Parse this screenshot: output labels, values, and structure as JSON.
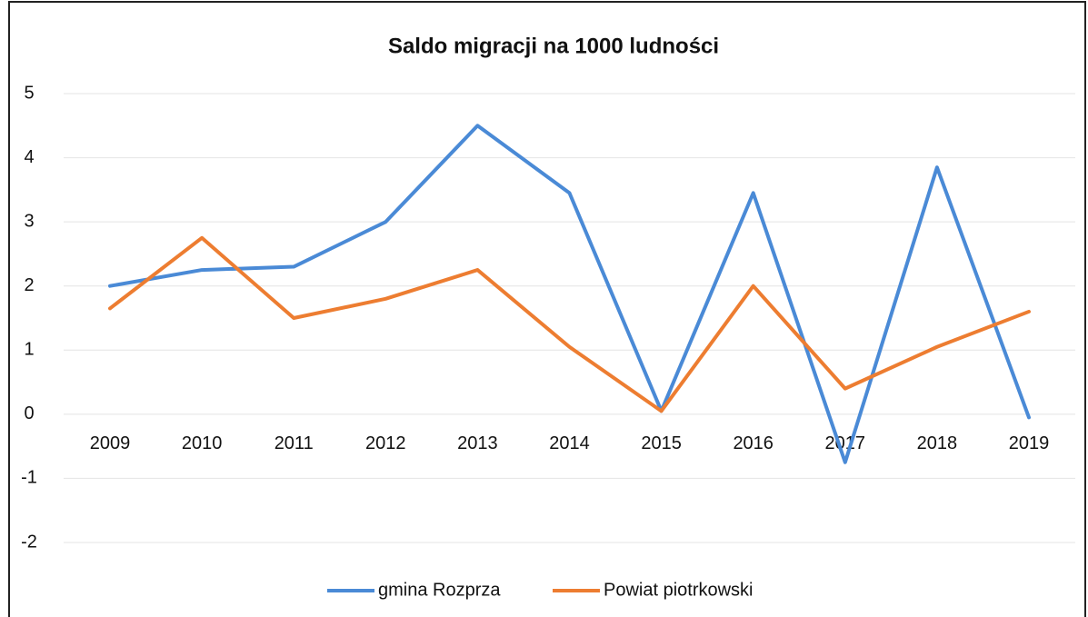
{
  "chart_data": {
    "type": "line",
    "title": "Saldo migracji na 1000 ludności",
    "categories": [
      "2009",
      "2010",
      "2011",
      "2012",
      "2013",
      "2014",
      "2015",
      "2016",
      "2017",
      "2018",
      "2019"
    ],
    "series": [
      {
        "name": "gmina Rozprza",
        "color": "#4a8ad6",
        "values": [
          2.0,
          2.25,
          2.3,
          3.0,
          4.5,
          3.45,
          0.05,
          3.45,
          -0.75,
          3.85,
          -0.05
        ]
      },
      {
        "name": "Powiat piotrkowski",
        "color": "#ed7d31",
        "values": [
          1.65,
          2.75,
          1.5,
          1.8,
          2.25,
          1.05,
          0.05,
          2.0,
          0.4,
          1.05,
          1.6
        ]
      }
    ],
    "ylim": [
      -2,
      5
    ],
    "yticks": [
      -2,
      -1,
      0,
      1,
      2,
      3,
      4,
      5
    ],
    "grid": true
  }
}
